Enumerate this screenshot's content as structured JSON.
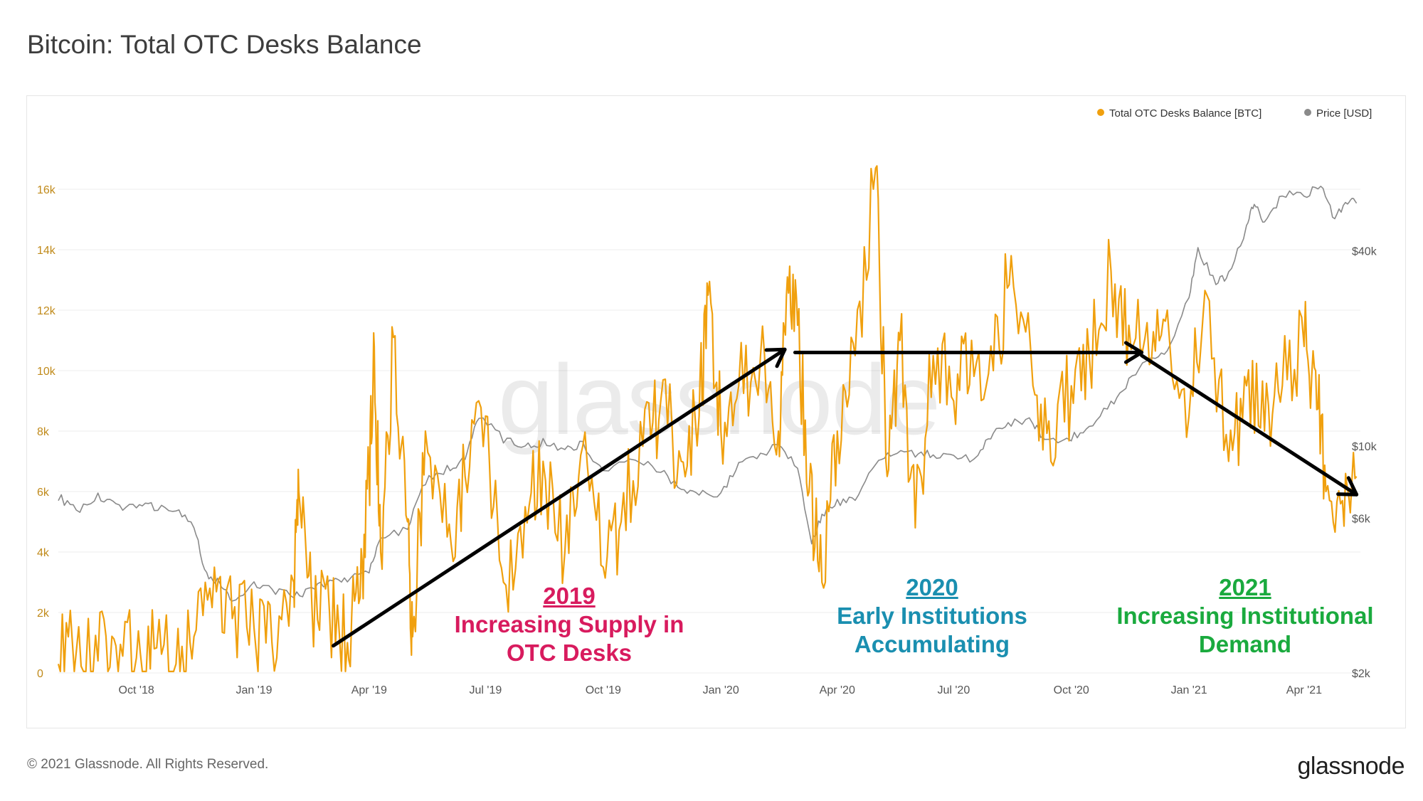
{
  "title": "Bitcoin: Total OTC Desks Balance",
  "footer": {
    "copyright": "© 2021 Glassnode. All Rights Reserved.",
    "logo": "glassnode"
  },
  "watermark": "glassnode",
  "legend": [
    {
      "label": "Total OTC Desks Balance [BTC]",
      "color": "#f0a00e"
    },
    {
      "label": "Price [USD]",
      "color": "#8a8a8a"
    }
  ],
  "annotations": [
    {
      "year": "2019",
      "text_lines": [
        "Increasing Supply in",
        "OTC Desks"
      ],
      "color": "#d81b5e"
    },
    {
      "year": "2020",
      "text_lines": [
        "Early Institutions",
        "Accumulating"
      ],
      "color": "#1a8fb0"
    },
    {
      "year": "2021",
      "text_lines": [
        "Increasing Institutional",
        "Demand"
      ],
      "color": "#1aaa3e"
    }
  ],
  "chart_data": {
    "type": "line",
    "title": "Bitcoin: Total OTC Desks Balance",
    "x_range": [
      "2018-08-01",
      "2021-05-15"
    ],
    "x_ticks": [
      {
        "label": "Oct '18",
        "date": "2018-10-01"
      },
      {
        "label": "Jan '19",
        "date": "2019-01-01"
      },
      {
        "label": "Apr '19",
        "date": "2019-04-01"
      },
      {
        "label": "Jul '19",
        "date": "2019-07-01"
      },
      {
        "label": "Oct '19",
        "date": "2019-10-01"
      },
      {
        "label": "Jan '20",
        "date": "2020-01-01"
      },
      {
        "label": "Apr '20",
        "date": "2020-04-01"
      },
      {
        "label": "Jul '20",
        "date": "2020-07-01"
      },
      {
        "label": "Oct '20",
        "date": "2020-10-01"
      },
      {
        "label": "Jan '21",
        "date": "2021-01-01"
      },
      {
        "label": "Apr '21",
        "date": "2021-04-01"
      }
    ],
    "y_left": {
      "label": "Total OTC Desks Balance [BTC]",
      "range": [
        0,
        17200
      ],
      "ticks": [
        0,
        2000,
        4000,
        6000,
        8000,
        10000,
        12000,
        14000,
        16000
      ],
      "tick_labels": [
        "0",
        "2k",
        "4k",
        "6k",
        "8k",
        "10k",
        "12k",
        "14k",
        "16k"
      ]
    },
    "y_right": {
      "label": "Price [USD]",
      "scale": "log",
      "range": [
        2000,
        80000
      ],
      "ticks": [
        2000,
        6000,
        10000,
        40000
      ],
      "tick_labels": [
        "$2k",
        "$6k",
        "$10k",
        "$40k"
      ]
    },
    "series": [
      {
        "name": "Total OTC Desks Balance [BTC]",
        "axis": "left",
        "color": "#f0a00e",
        "points": [
          [
            "2018-08-01",
            300
          ],
          [
            "2018-08-15",
            700
          ],
          [
            "2018-09-01",
            400
          ],
          [
            "2018-09-15",
            900
          ],
          [
            "2018-10-01",
            500
          ],
          [
            "2018-10-15",
            800
          ],
          [
            "2018-11-01",
            300
          ],
          [
            "2018-11-15",
            1200
          ],
          [
            "2018-12-01",
            3500
          ],
          [
            "2018-12-15",
            1800
          ],
          [
            "2019-01-01",
            1500
          ],
          [
            "2019-01-15",
            1000
          ],
          [
            "2019-02-01",
            3000
          ],
          [
            "2019-02-05",
            6000
          ],
          [
            "2019-02-15",
            2500
          ],
          [
            "2019-03-01",
            2000
          ],
          [
            "2019-03-15",
            1000
          ],
          [
            "2019-03-25",
            2500
          ],
          [
            "2019-04-01",
            6500
          ],
          [
            "2019-04-05",
            10800
          ],
          [
            "2019-04-10",
            4000
          ],
          [
            "2019-04-20",
            11100
          ],
          [
            "2019-05-01",
            5000
          ],
          [
            "2019-05-05",
            1200
          ],
          [
            "2019-05-15",
            8000
          ],
          [
            "2019-06-01",
            4500
          ],
          [
            "2019-06-15",
            6500
          ],
          [
            "2019-07-01",
            8500
          ],
          [
            "2019-07-15",
            3000
          ],
          [
            "2019-08-01",
            5500
          ],
          [
            "2019-08-15",
            7000
          ],
          [
            "2019-09-01",
            4000
          ],
          [
            "2019-09-15",
            7500
          ],
          [
            "2019-10-01",
            3500
          ],
          [
            "2019-10-15",
            5000
          ],
          [
            "2019-11-01",
            7500
          ],
          [
            "2019-11-15",
            9000
          ],
          [
            "2019-12-01",
            7000
          ],
          [
            "2019-12-15",
            8500
          ],
          [
            "2019-12-22",
            12500
          ],
          [
            "2020-01-01",
            8000
          ],
          [
            "2020-01-15",
            9500
          ],
          [
            "2020-02-01",
            10500
          ],
          [
            "2020-02-15",
            8000
          ],
          [
            "2020-02-22",
            13100
          ],
          [
            "2020-03-01",
            11500
          ],
          [
            "2020-03-10",
            6000
          ],
          [
            "2020-03-20",
            3000
          ],
          [
            "2020-04-01",
            8000
          ],
          [
            "2020-04-15",
            10500
          ],
          [
            "2020-05-01",
            16700
          ],
          [
            "2020-05-10",
            6500
          ],
          [
            "2020-05-20",
            11000
          ],
          [
            "2020-06-01",
            4800
          ],
          [
            "2020-06-15",
            10500
          ],
          [
            "2020-07-01",
            9000
          ],
          [
            "2020-07-15",
            11000
          ],
          [
            "2020-08-01",
            10000
          ],
          [
            "2020-08-15",
            13800
          ],
          [
            "2020-09-01",
            9500
          ],
          [
            "2020-09-15",
            7000
          ],
          [
            "2020-10-01",
            9500
          ],
          [
            "2020-10-15",
            10500
          ],
          [
            "2020-11-01",
            13300
          ],
          [
            "2020-11-15",
            11500
          ],
          [
            "2020-12-01",
            10200
          ],
          [
            "2020-12-15",
            12000
          ],
          [
            "2021-01-01",
            8500
          ],
          [
            "2021-01-15",
            12500
          ],
          [
            "2021-02-01",
            7000
          ],
          [
            "2021-02-15",
            9500
          ],
          [
            "2021-03-01",
            8000
          ],
          [
            "2021-03-15",
            9500
          ],
          [
            "2021-04-01",
            10800
          ],
          [
            "2021-04-10",
            10000
          ],
          [
            "2021-04-18",
            6000
          ],
          [
            "2021-05-01",
            5700
          ],
          [
            "2021-05-12",
            6500
          ]
        ]
      },
      {
        "name": "Price [USD]",
        "axis": "right",
        "color": "#8a8a8a",
        "points": [
          [
            "2018-08-01",
            7000
          ],
          [
            "2018-08-15",
            6300
          ],
          [
            "2018-09-01",
            7000
          ],
          [
            "2018-09-15",
            6500
          ],
          [
            "2018-10-01",
            6600
          ],
          [
            "2018-10-15",
            6500
          ],
          [
            "2018-11-01",
            6400
          ],
          [
            "2018-11-15",
            5600
          ],
          [
            "2018-11-25",
            4000
          ],
          [
            "2018-12-05",
            3800
          ],
          [
            "2018-12-15",
            3300
          ],
          [
            "2019-01-01",
            3800
          ],
          [
            "2019-01-15",
            3600
          ],
          [
            "2019-02-01",
            3450
          ],
          [
            "2019-02-15",
            3600
          ],
          [
            "2019-03-01",
            3850
          ],
          [
            "2019-03-15",
            3900
          ],
          [
            "2019-04-01",
            4100
          ],
          [
            "2019-04-10",
            5200
          ],
          [
            "2019-05-01",
            5600
          ],
          [
            "2019-05-15",
            7800
          ],
          [
            "2019-06-01",
            8500
          ],
          [
            "2019-06-15",
            9000
          ],
          [
            "2019-06-26",
            12500
          ],
          [
            "2019-07-15",
            10500
          ],
          [
            "2019-08-01",
            10000
          ],
          [
            "2019-08-15",
            10300
          ],
          [
            "2019-09-01",
            9800
          ],
          [
            "2019-09-15",
            10200
          ],
          [
            "2019-10-01",
            8300
          ],
          [
            "2019-10-26",
            9300
          ],
          [
            "2019-11-15",
            8400
          ],
          [
            "2019-12-01",
            7400
          ],
          [
            "2019-12-15",
            7100
          ],
          [
            "2020-01-01",
            7200
          ],
          [
            "2020-01-15",
            8700
          ],
          [
            "2020-02-01",
            9400
          ],
          [
            "2020-02-15",
            10200
          ],
          [
            "2020-03-01",
            8700
          ],
          [
            "2020-03-12",
            5000
          ],
          [
            "2020-03-20",
            6200
          ],
          [
            "2020-04-01",
            6700
          ],
          [
            "2020-04-15",
            6900
          ],
          [
            "2020-05-01",
            8800
          ],
          [
            "2020-05-15",
            9500
          ],
          [
            "2020-06-01",
            9500
          ],
          [
            "2020-06-15",
            9400
          ],
          [
            "2020-07-01",
            9200
          ],
          [
            "2020-07-20",
            9200
          ],
          [
            "2020-08-01",
            11200
          ],
          [
            "2020-08-15",
            11800
          ],
          [
            "2020-09-01",
            11900
          ],
          [
            "2020-09-10",
            10300
          ],
          [
            "2020-10-01",
            10600
          ],
          [
            "2020-10-15",
            11400
          ],
          [
            "2020-11-01",
            13500
          ],
          [
            "2020-11-15",
            15800
          ],
          [
            "2020-12-01",
            19000
          ],
          [
            "2020-12-15",
            19400
          ],
          [
            "2021-01-01",
            29000
          ],
          [
            "2021-01-08",
            40000
          ],
          [
            "2021-01-22",
            32000
          ],
          [
            "2021-02-01",
            33500
          ],
          [
            "2021-02-15",
            47000
          ],
          [
            "2021-02-21",
            57000
          ],
          [
            "2021-03-01",
            48000
          ],
          [
            "2021-03-15",
            60000
          ],
          [
            "2021-04-01",
            58800
          ],
          [
            "2021-04-14",
            63500
          ],
          [
            "2021-04-25",
            50000
          ],
          [
            "2021-05-05",
            57000
          ],
          [
            "2021-05-12",
            56000
          ]
        ]
      }
    ],
    "arrows": [
      {
        "from": [
          "2019-03-04",
          900
        ],
        "to": [
          "2020-02-20",
          10700
        ]
      },
      {
        "from": [
          "2020-02-28",
          10600
        ],
        "to": [
          "2020-11-25",
          10600
        ]
      },
      {
        "from": [
          "2020-11-25",
          10500
        ],
        "to": [
          "2021-05-12",
          5900
        ]
      }
    ]
  }
}
